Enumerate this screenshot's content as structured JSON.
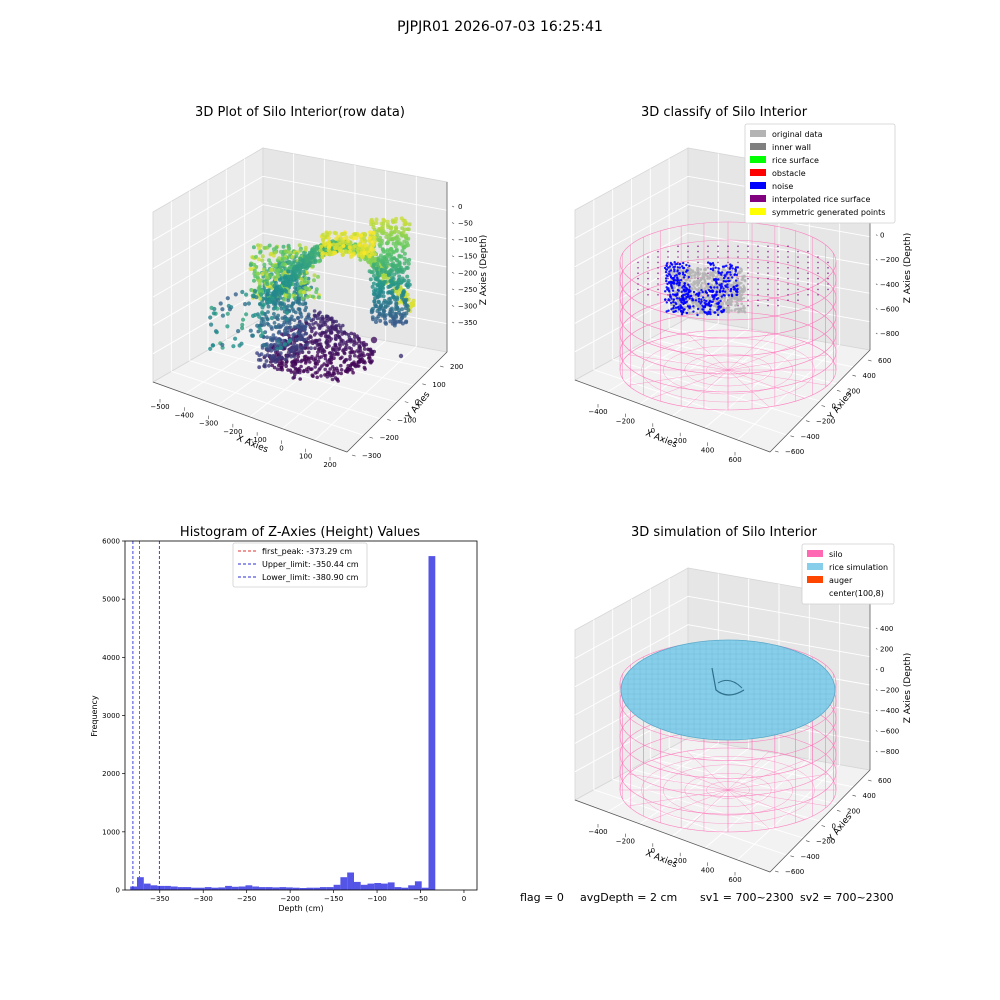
{
  "figure": {
    "suptitle": "PJPJR01 2026-07-03 16:25:41",
    "footer": {
      "flag": "flag = 0",
      "avg_depth": "avgDepth = 2 cm",
      "sv1": "sv1 = 700~2300",
      "sv2": "sv2 = 700~2300"
    }
  },
  "colors": {
    "hist_bar": "#4b4be6",
    "first_peak": "#e03030",
    "limits": "#2b2bd6",
    "silo": "#ff69b4",
    "rice_simulation": "#87ceeb",
    "auger": "#ff4500",
    "original_data": "#b4b4b4",
    "inner_wall": "#808080",
    "rice_surface": "#00ff00",
    "obstacle": "#ff0000",
    "noise": "#0000ff",
    "interpolated_rice_surface": "#800080",
    "symmetric_generated_points": "#ffff00"
  },
  "chart_data": [
    {
      "type": "scatter",
      "title": "3D Plot of Silo Interior(row data)",
      "xlabel": "X Axies",
      "ylabel": "Y Axies",
      "zlabel": "Z Axies (Depth)",
      "x_ticks": [
        "−500",
        "−400",
        "−300",
        "−200",
        "−100",
        "0",
        "100",
        "200"
      ],
      "y_ticks": [
        "−300",
        "−200",
        "−100",
        "0",
        "100",
        "200"
      ],
      "z_ticks": [
        "0",
        "−50",
        "−100",
        "−150",
        "−200",
        "−250",
        "−300",
        "−350"
      ],
      "colormap": "viridis",
      "grid": true
    },
    {
      "type": "scatter",
      "title": "3D classify of Silo Interior",
      "xlabel": "X Axies",
      "ylabel": "Y Axies",
      "zlabel": "Z Axies (Depth)",
      "x_ticks": [
        "−400",
        "−200",
        "0",
        "200",
        "400",
        "600"
      ],
      "y_ticks": [
        "−600",
        "−400",
        "−200",
        "0",
        "200",
        "400",
        "600"
      ],
      "z_ticks": [
        "200",
        "0",
        "−200",
        "−400",
        "−600",
        "−800"
      ],
      "legend": [
        {
          "label": "original data",
          "color": "#b4b4b4"
        },
        {
          "label": "inner wall",
          "color": "#808080"
        },
        {
          "label": "rice surface",
          "color": "#00ff00"
        },
        {
          "label": "obstacle",
          "color": "#ff0000"
        },
        {
          "label": "noise",
          "color": "#0000ff"
        },
        {
          "label": "interpolated rice surface",
          "color": "#800080"
        },
        {
          "label": "symmetric generated points",
          "color": "#ffff00"
        }
      ],
      "legend_position": "top-right",
      "grid": true
    },
    {
      "type": "bar",
      "title": "Histogram of Z-Axies (Height) Values",
      "xlabel": "Depth (cm)",
      "ylabel": "Frequency",
      "xlim": [
        -390,
        15
      ],
      "ylim": [
        0,
        6000
      ],
      "x_ticks": [
        -350,
        -300,
        -250,
        -200,
        -150,
        -100,
        -50,
        0
      ],
      "x_tick_labels": [
        "−350",
        "−300",
        "−250",
        "−200",
        "−150",
        "−100",
        "−50",
        "0"
      ],
      "y_ticks": [
        0,
        1000,
        2000,
        3000,
        4000,
        5000,
        6000
      ],
      "y_tick_labels": [
        "0",
        "1000",
        "2000",
        "3000",
        "4000",
        "5000",
        "6000"
      ],
      "bin_start": -384,
      "bin_width": 7.8,
      "values": [
        60,
        220,
        110,
        80,
        70,
        70,
        60,
        50,
        50,
        40,
        40,
        50,
        40,
        45,
        70,
        55,
        60,
        80,
        60,
        50,
        50,
        45,
        50,
        45,
        40,
        35,
        40,
        40,
        50,
        50,
        90,
        220,
        300,
        140,
        90,
        110,
        120,
        110,
        130,
        50,
        40,
        80,
        150,
        40,
        5740
      ],
      "vlines": [
        {
          "label": "first_peak: -373.29 cm",
          "x": -373.29,
          "color": "#e03030"
        },
        {
          "label": "Upper_limit: -350.44 cm",
          "x": -350.44,
          "color": "#2b2bd6"
        },
        {
          "label": "Lower_limit: -380.90 cm",
          "x": -380.9,
          "color": "#2b2bd6"
        }
      ],
      "legend_position": "top-center",
      "grid": false
    },
    {
      "type": "scatter",
      "title": "3D simulation of Silo Interior",
      "xlabel": "X Axies",
      "ylabel": "Y Axies",
      "zlabel": "Z Axies (Depth)",
      "x_ticks": [
        "−400",
        "−200",
        "0",
        "200",
        "400",
        "600"
      ],
      "y_ticks": [
        "−600",
        "−400",
        "−200",
        "0",
        "200",
        "400",
        "600"
      ],
      "z_ticks": [
        "400",
        "200",
        "0",
        "−200",
        "−400",
        "−600",
        "−800"
      ],
      "legend": [
        {
          "label": "silo",
          "color": "#ff69b4"
        },
        {
          "label": "rice simulation",
          "color": "#87ceeb"
        },
        {
          "label": "auger",
          "color": "#ff4500"
        },
        {
          "label": "center(100,8)",
          "color": "#ffffff"
        }
      ],
      "legend_position": "top-right",
      "grid": true
    }
  ]
}
